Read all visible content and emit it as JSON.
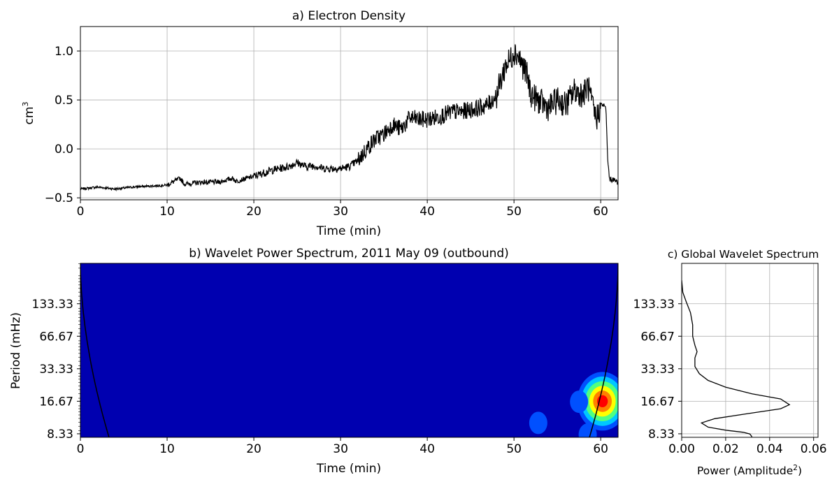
{
  "chart_data": [
    {
      "type": "line",
      "title": "a) Electron Density",
      "xlabel": "Time (min)",
      "ylabel": "cm",
      "ylabel_superscript": "3",
      "xlim": [
        0,
        62
      ],
      "ylim": [
        -0.52,
        1.25
      ],
      "xticks": [
        0,
        10,
        20,
        30,
        40,
        50,
        60
      ],
      "yticks": [
        -0.5,
        0.0,
        0.5,
        1.0
      ],
      "ytick_labels": [
        "−0.5",
        "0.0",
        "0.5",
        "1.0"
      ],
      "grid": true,
      "line_color": "#000000",
      "series": [
        {
          "x": [
            0,
            2,
            4,
            6,
            8,
            10,
            11.5,
            12,
            14,
            16,
            17.5,
            18,
            20,
            22,
            24,
            25,
            26,
            27,
            28,
            30,
            31,
            32,
            33,
            34,
            35,
            36,
            37,
            38,
            39,
            40,
            41,
            42,
            43,
            44,
            45,
            46,
            47,
            48,
            48.5,
            49,
            49.5,
            50,
            50.5,
            51,
            51.5,
            52,
            53,
            54,
            55,
            56,
            57,
            58,
            58.5,
            59,
            59.5,
            60,
            60.3,
            60.6,
            60.8,
            61,
            62
          ],
          "y": [
            -0.41,
            -0.39,
            -0.41,
            -0.39,
            -0.38,
            -0.37,
            -0.3,
            -0.36,
            -0.34,
            -0.34,
            -0.3,
            -0.33,
            -0.28,
            -0.22,
            -0.18,
            -0.14,
            -0.18,
            -0.17,
            -0.2,
            -0.2,
            -0.18,
            -0.12,
            0.0,
            0.1,
            0.15,
            0.25,
            0.2,
            0.32,
            0.3,
            0.3,
            0.32,
            0.35,
            0.38,
            0.38,
            0.4,
            0.42,
            0.45,
            0.55,
            0.7,
            0.85,
            0.9,
            1.0,
            0.95,
            0.85,
            0.75,
            0.55,
            0.48,
            0.42,
            0.5,
            0.45,
            0.6,
            0.55,
            0.65,
            0.45,
            0.3,
            0.45,
            0.45,
            0.42,
            -0.1,
            -0.3,
            -0.34
          ]
        }
      ]
    },
    {
      "type": "heatmap",
      "title": "b) Wavelet Power Spectrum, 2011 May 09 (outbound)",
      "xlabel": "Time (min)",
      "ylabel": "Period (mHz)",
      "xlim": [
        0,
        62
      ],
      "ylim_log2": [
        2.95,
        8.3
      ],
      "xticks": [
        0,
        10,
        20,
        30,
        40,
        50,
        60
      ],
      "yticks": [
        "133.33",
        "66.67",
        "33.33",
        "16.67",
        "8.33"
      ],
      "background_color": "#0000b0",
      "colormap": [
        "#0000b0",
        "#0050ff",
        "#00c8ff",
        "#50ff80",
        "#ffff00",
        "#ff8000",
        "#ff0000"
      ],
      "blobs": [
        {
          "t": 60.2,
          "period": 16.67,
          "peak": 1.0,
          "label": "main power peak"
        },
        {
          "t": 52.8,
          "period": 10.5,
          "peak": 0.18,
          "label": "secondary peak"
        },
        {
          "t": 58.5,
          "period": 8.2,
          "peak": 0.16,
          "label": "low period peak"
        },
        {
          "t": 57.5,
          "period": 16.5,
          "peak": 0.14,
          "label": "left lobe"
        }
      ],
      "cone_of_influence": true
    },
    {
      "type": "line",
      "title": "c) Global Wavelet Spectrum",
      "xlabel": "Power (Amplitude",
      "xlabel_superscript": "2",
      "xlabel_suffix": ")",
      "xlim": [
        0,
        0.062
      ],
      "xticks": [
        0.0,
        0.02,
        0.04,
        0.06
      ],
      "xtick_labels": [
        "0.00",
        "0.02",
        "0.04",
        "0.06"
      ],
      "yticks": [
        "133.33",
        "66.67",
        "33.33",
        "16.67",
        "8.33"
      ],
      "grid": true,
      "series": [
        {
          "power": [
            0.0,
            0.0005,
            0.002,
            0.004,
            0.005,
            0.005,
            0.006,
            0.007,
            0.006,
            0.006,
            0.008,
            0.012,
            0.02,
            0.032,
            0.045,
            0.049,
            0.045,
            0.03,
            0.015,
            0.009,
            0.012,
            0.02,
            0.028,
            0.031,
            0.032
          ],
          "period": [
            220,
            170,
            140,
            110,
            85,
            66.67,
            55,
            48,
            42,
            35,
            30,
            26,
            22.5,
            19.5,
            17.5,
            15.5,
            14.2,
            12.8,
            11.5,
            10.5,
            9.6,
            9.0,
            8.6,
            8.3,
            7.8
          ]
        }
      ]
    }
  ]
}
